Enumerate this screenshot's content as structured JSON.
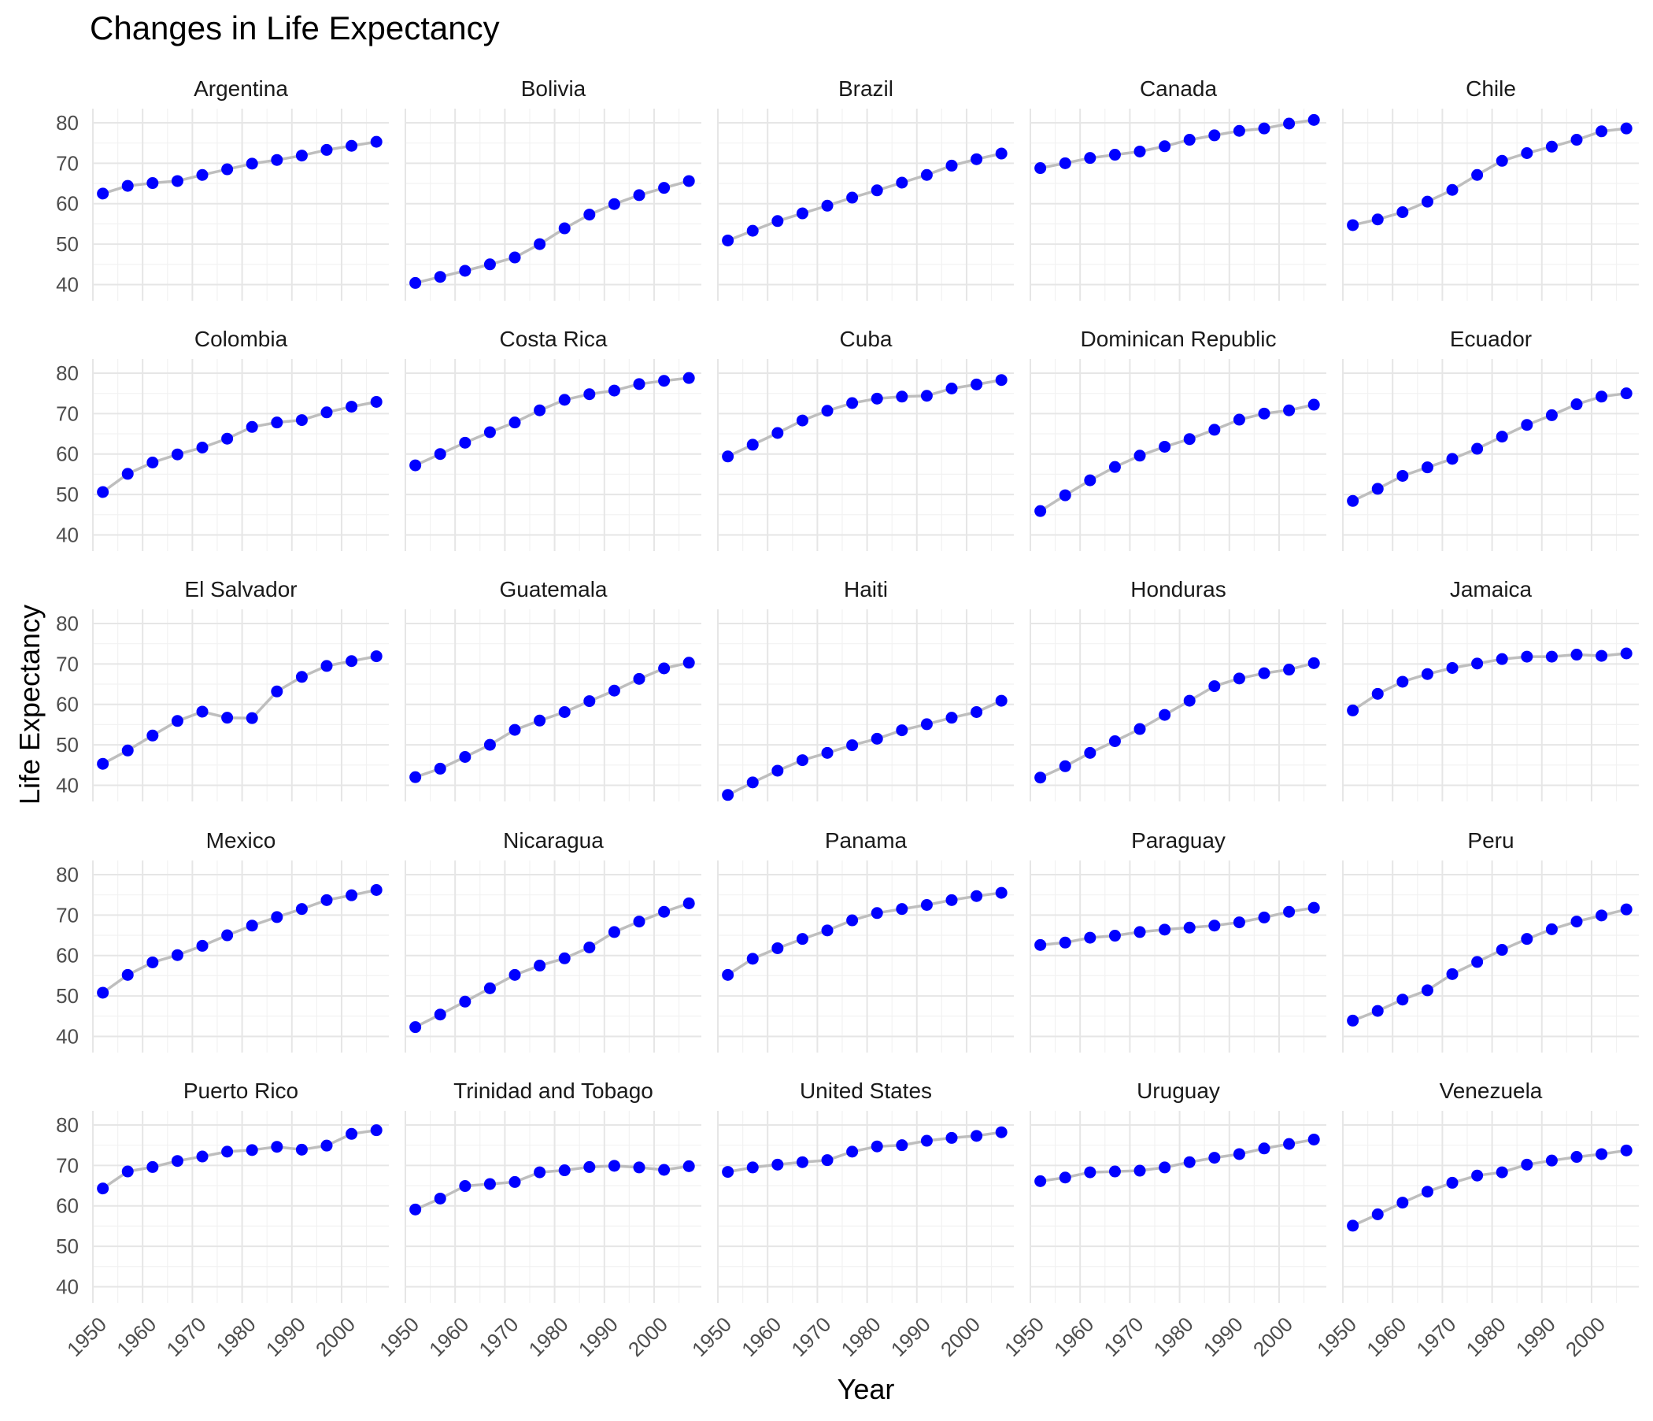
{
  "chart_data": {
    "type": "line",
    "title": "Changes in Life Expectancy",
    "xlabel": "Year",
    "ylabel": "Life Expectancy",
    "xlim": [
      1950,
      2009.5
    ],
    "ylim": [
      36,
      83.5
    ],
    "x_ticks": [
      1950,
      1960,
      1970,
      1980,
      1990,
      2000
    ],
    "y_ticks": [
      40,
      50,
      60,
      70,
      80
    ],
    "grid": true,
    "point_color": "#0000ff",
    "line_color": "#bebebe",
    "x": [
      1952,
      1957,
      1962,
      1967,
      1972,
      1977,
      1982,
      1987,
      1992,
      1997,
      2002,
      2007
    ],
    "panels": [
      {
        "name": "Argentina",
        "values": [
          62.5,
          64.4,
          65.1,
          65.6,
          67.1,
          68.5,
          69.9,
          70.8,
          71.9,
          73.3,
          74.3,
          75.3
        ]
      },
      {
        "name": "Bolivia",
        "values": [
          40.4,
          41.9,
          43.4,
          45.0,
          46.7,
          50.0,
          53.9,
          57.3,
          59.9,
          62.1,
          63.9,
          65.6
        ]
      },
      {
        "name": "Brazil",
        "values": [
          50.9,
          53.3,
          55.7,
          57.6,
          59.5,
          61.5,
          63.3,
          65.2,
          67.1,
          69.4,
          71.0,
          72.4
        ]
      },
      {
        "name": "Canada",
        "values": [
          68.8,
          70.0,
          71.3,
          72.1,
          72.9,
          74.2,
          75.8,
          76.9,
          78.0,
          78.6,
          79.8,
          80.7
        ]
      },
      {
        "name": "Chile",
        "values": [
          54.7,
          56.1,
          57.9,
          60.5,
          63.4,
          67.1,
          70.6,
          72.5,
          74.1,
          75.8,
          77.9,
          78.6
        ]
      },
      {
        "name": "Colombia",
        "values": [
          50.6,
          55.1,
          57.9,
          59.9,
          61.6,
          63.8,
          66.7,
          67.8,
          68.4,
          70.3,
          71.7,
          72.9
        ]
      },
      {
        "name": "Costa Rica",
        "values": [
          57.2,
          60.0,
          62.8,
          65.4,
          67.8,
          70.8,
          73.4,
          74.8,
          75.7,
          77.3,
          78.1,
          78.8
        ]
      },
      {
        "name": "Cuba",
        "values": [
          59.4,
          62.3,
          65.2,
          68.3,
          70.7,
          72.6,
          73.7,
          74.2,
          74.4,
          76.2,
          77.2,
          78.3
        ]
      },
      {
        "name": "Dominican Republic",
        "values": [
          45.9,
          49.8,
          53.5,
          56.8,
          59.6,
          61.8,
          63.7,
          66.0,
          68.5,
          70.0,
          70.8,
          72.2
        ]
      },
      {
        "name": "Ecuador",
        "values": [
          48.4,
          51.4,
          54.6,
          56.7,
          58.8,
          61.3,
          64.3,
          67.2,
          69.6,
          72.3,
          74.2,
          75.0
        ]
      },
      {
        "name": "El Salvador",
        "values": [
          45.3,
          48.6,
          52.3,
          55.9,
          58.2,
          56.7,
          56.6,
          63.2,
          66.8,
          69.5,
          70.7,
          71.9
        ]
      },
      {
        "name": "Guatemala",
        "values": [
          42.0,
          44.1,
          47.0,
          50.0,
          53.7,
          56.0,
          58.1,
          60.8,
          63.4,
          66.3,
          68.9,
          70.3
        ]
      },
      {
        "name": "Haiti",
        "values": [
          37.6,
          40.7,
          43.6,
          46.2,
          48.0,
          49.9,
          51.5,
          53.6,
          55.1,
          56.7,
          58.1,
          60.9
        ]
      },
      {
        "name": "Honduras",
        "values": [
          41.9,
          44.7,
          48.0,
          50.9,
          53.9,
          57.4,
          60.9,
          64.5,
          66.4,
          67.7,
          68.6,
          70.2
        ]
      },
      {
        "name": "Jamaica",
        "values": [
          58.5,
          62.6,
          65.6,
          67.5,
          69.0,
          70.1,
          71.2,
          71.8,
          71.8,
          72.3,
          72.0,
          72.6
        ]
      },
      {
        "name": "Mexico",
        "values": [
          50.8,
          55.2,
          58.3,
          60.1,
          62.4,
          65.0,
          67.4,
          69.5,
          71.5,
          73.7,
          74.9,
          76.2
        ]
      },
      {
        "name": "Nicaragua",
        "values": [
          42.3,
          45.4,
          48.6,
          51.9,
          55.2,
          57.5,
          59.3,
          62.0,
          65.8,
          68.4,
          70.8,
          72.9
        ]
      },
      {
        "name": "Panama",
        "values": [
          55.2,
          59.2,
          61.8,
          64.1,
          66.2,
          68.7,
          70.5,
          71.5,
          72.5,
          73.7,
          74.7,
          75.5
        ]
      },
      {
        "name": "Paraguay",
        "values": [
          62.6,
          63.2,
          64.4,
          64.9,
          65.8,
          66.4,
          66.9,
          67.4,
          68.2,
          69.4,
          70.8,
          71.8
        ]
      },
      {
        "name": "Peru",
        "values": [
          43.9,
          46.3,
          49.1,
          51.4,
          55.4,
          58.4,
          61.4,
          64.1,
          66.5,
          68.4,
          69.9,
          71.4
        ]
      },
      {
        "name": "Puerto Rico",
        "values": [
          64.3,
          68.5,
          69.6,
          71.1,
          72.2,
          73.4,
          73.8,
          74.6,
          73.9,
          74.9,
          77.8,
          78.7
        ]
      },
      {
        "name": "Trinidad and Tobago",
        "values": [
          59.1,
          61.8,
          64.9,
          65.4,
          65.9,
          68.3,
          68.8,
          69.6,
          69.9,
          69.5,
          68.9,
          69.8
        ]
      },
      {
        "name": "United States",
        "values": [
          68.4,
          69.5,
          70.2,
          70.8,
          71.3,
          73.4,
          74.7,
          75.0,
          76.1,
          76.8,
          77.3,
          78.2
        ]
      },
      {
        "name": "Uruguay",
        "values": [
          66.1,
          67.0,
          68.3,
          68.5,
          68.7,
          69.5,
          70.8,
          71.9,
          72.8,
          74.2,
          75.3,
          76.4
        ]
      },
      {
        "name": "Venezuela",
        "values": [
          55.1,
          57.9,
          60.8,
          63.5,
          65.7,
          67.5,
          68.3,
          70.2,
          71.2,
          72.1,
          72.8,
          73.7
        ]
      }
    ]
  }
}
